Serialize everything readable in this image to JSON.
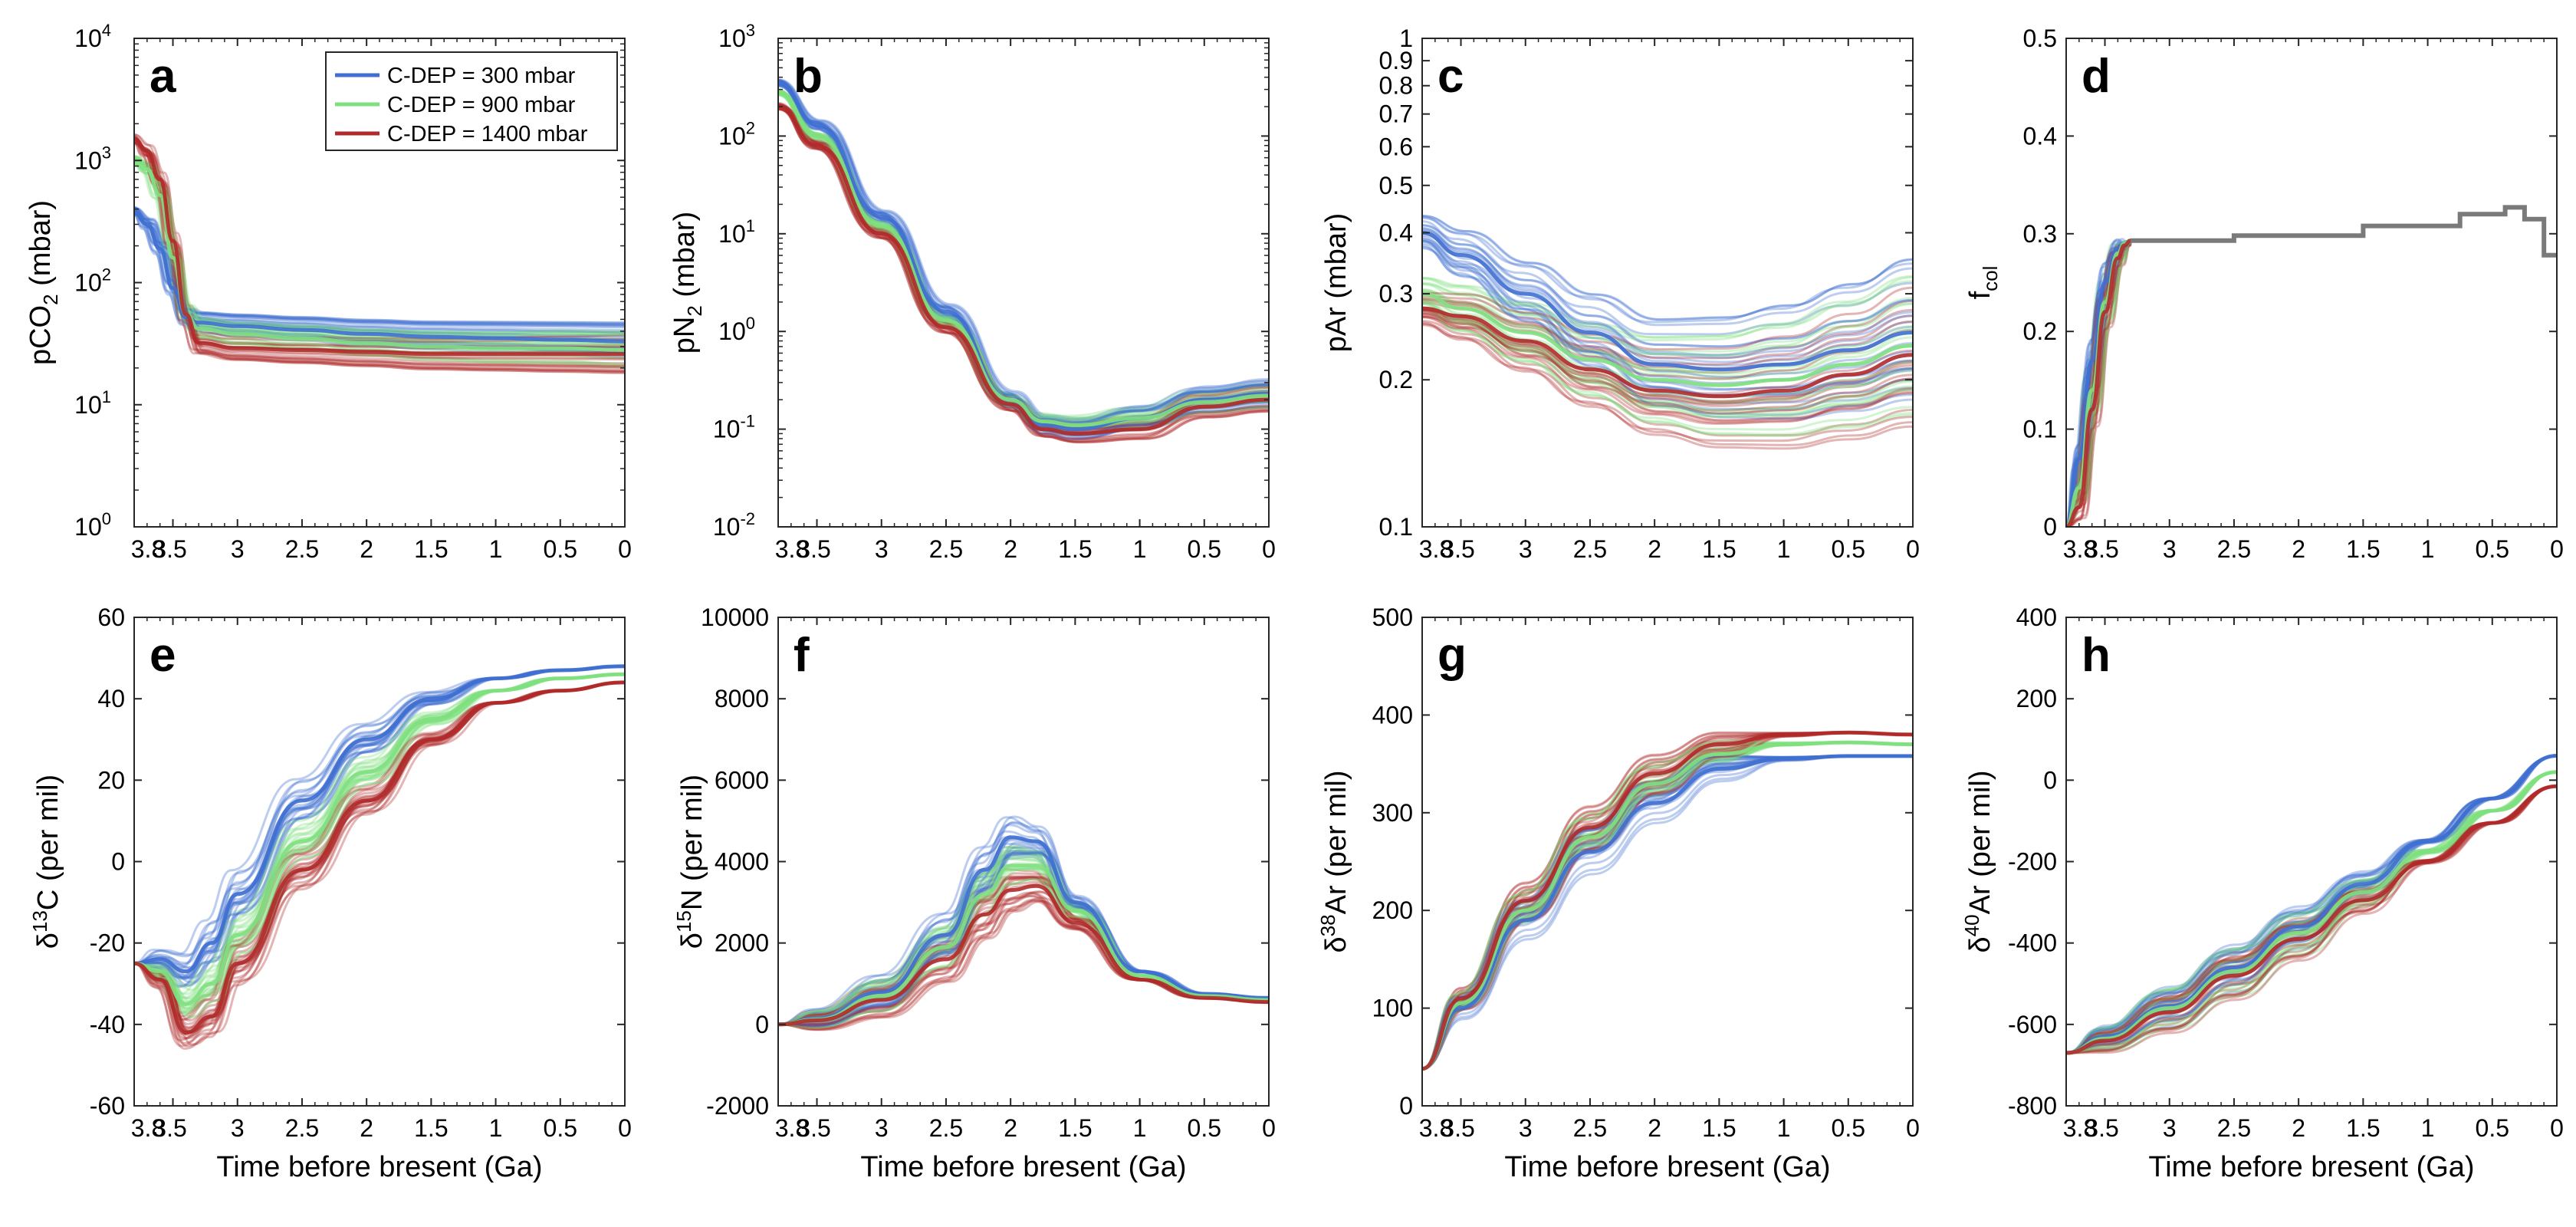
{
  "figure": {
    "xlabel": "Time before bresent (Ga)"
  },
  "legend": [
    {
      "label": "C-DEP = 300 mbar",
      "color": "#3f6fd0"
    },
    {
      "label": "C-DEP = 900 mbar",
      "color": "#7fe07f"
    },
    {
      "label": "C-DEP = 1400 mbar",
      "color": "#b02a2a"
    }
  ],
  "chart_data": [
    {
      "id": "a",
      "letter": "a",
      "type": "line",
      "scale": "log",
      "ylabel_base": "pCO",
      "ylabel_sub": "2",
      "ylabel_rest": " (mbar)",
      "ylim": [
        1,
        10000
      ],
      "yticks": [
        {
          "v": 1,
          "b": "10",
          "e": "0"
        },
        {
          "v": 10,
          "b": "10",
          "e": "1"
        },
        {
          "v": 100,
          "b": "10",
          "e": "2"
        },
        {
          "v": 1000,
          "b": "10",
          "e": "3"
        },
        {
          "v": 10000,
          "b": "10",
          "e": "4"
        }
      ],
      "x": [
        3.8,
        3.7,
        3.6,
        3.5,
        3.4,
        3.3,
        3.0,
        2.5,
        2.0,
        1.5,
        1.0,
        0.5,
        0.0
      ],
      "series": [
        {
          "name": "C-DEP = 300 mbar",
          "values": [
            380,
            300,
            190,
            90,
            52,
            47,
            44,
            41,
            38,
            36,
            35,
            34,
            33
          ]
        },
        {
          "name": "C-DEP = 900 mbar",
          "values": [
            1000,
            850,
            520,
            160,
            55,
            42,
            38,
            35,
            32,
            30,
            29,
            29,
            28
          ]
        },
        {
          "name": "C-DEP = 1400 mbar",
          "values": [
            1500,
            1200,
            700,
            220,
            55,
            32,
            29,
            28,
            27,
            26,
            26,
            26,
            26
          ]
        }
      ],
      "show_legend": true
    },
    {
      "id": "b",
      "letter": "b",
      "type": "line",
      "scale": "log",
      "ylabel_base": "pN",
      "ylabel_sub": "2",
      "ylabel_rest": " (mbar)",
      "ylim": [
        0.01,
        1000
      ],
      "yticks": [
        {
          "v": 0.01,
          "b": "10",
          "e": "-2"
        },
        {
          "v": 0.1,
          "b": "10",
          "e": "-1"
        },
        {
          "v": 1,
          "b": "10",
          "e": "0"
        },
        {
          "v": 10,
          "b": "10",
          "e": "1"
        },
        {
          "v": 100,
          "b": "10",
          "e": "2"
        },
        {
          "v": 1000,
          "b": "10",
          "e": "3"
        }
      ],
      "x": [
        3.8,
        3.5,
        3.0,
        2.5,
        2.0,
        1.75,
        1.5,
        1.0,
        0.5,
        0.0
      ],
      "series": [
        {
          "name": "C-DEP = 300 mbar",
          "values": [
            350,
            130,
            15,
            1.6,
            0.2,
            0.11,
            0.1,
            0.13,
            0.2,
            0.23
          ]
        },
        {
          "name": "C-DEP = 900 mbar",
          "values": [
            280,
            100,
            12,
            1.3,
            0.2,
            0.12,
            0.11,
            0.13,
            0.19,
            0.22
          ]
        },
        {
          "name": "C-DEP = 1400 mbar",
          "values": [
            200,
            80,
            10,
            1.1,
            0.18,
            0.1,
            0.09,
            0.1,
            0.17,
            0.2
          ]
        }
      ]
    },
    {
      "id": "c",
      "letter": "c",
      "type": "line",
      "scale": "log",
      "ylabel_base": "pAr",
      "ylabel_sub": "",
      "ylabel_rest": " (mbar)",
      "ylim": [
        0.1,
        1
      ],
      "yticks": [
        {
          "v": 0.1,
          "t": "0.1"
        },
        {
          "v": 0.2,
          "t": "0.2"
        },
        {
          "v": 0.3,
          "t": "0.3"
        },
        {
          "v": 0.4,
          "t": "0.4"
        },
        {
          "v": 0.5,
          "t": "0.5"
        },
        {
          "v": 0.6,
          "t": "0.6"
        },
        {
          "v": 0.7,
          "t": "0.7"
        },
        {
          "v": 0.8,
          "t": "0.8"
        },
        {
          "v": 0.9,
          "t": "0.9"
        },
        {
          "v": 1,
          "t": "1"
        }
      ],
      "x": [
        3.8,
        3.5,
        3.0,
        2.5,
        2.0,
        1.5,
        1.0,
        0.5,
        0.0
      ],
      "series": [
        {
          "name": "C-DEP = 300 mbar",
          "values": [
            0.4,
            0.36,
            0.3,
            0.25,
            0.215,
            0.21,
            0.215,
            0.23,
            0.25
          ]
        },
        {
          "name": "C-DEP = 900 mbar",
          "values": [
            0.3,
            0.28,
            0.25,
            0.22,
            0.2,
            0.195,
            0.2,
            0.215,
            0.235
          ]
        },
        {
          "name": "C-DEP = 1400 mbar",
          "values": [
            0.28,
            0.27,
            0.24,
            0.21,
            0.19,
            0.185,
            0.19,
            0.205,
            0.225
          ]
        }
      ]
    },
    {
      "id": "d",
      "letter": "d",
      "type": "line",
      "scale": "linear",
      "ylabel_base": "f",
      "ylabel_sub": "col",
      "ylabel_rest": "",
      "ylim": [
        0,
        0.5
      ],
      "yticks": [
        {
          "v": 0,
          "t": "0"
        },
        {
          "v": 0.1,
          "t": "0.1"
        },
        {
          "v": 0.2,
          "t": "0.2"
        },
        {
          "v": 0.3,
          "t": "0.3"
        },
        {
          "v": 0.4,
          "t": "0.4"
        },
        {
          "v": 0.5,
          "t": "0.5"
        }
      ],
      "x": [
        3.8,
        3.7,
        3.6,
        3.5,
        3.4,
        3.35,
        3.3
      ],
      "series": [
        {
          "name": "C-DEP = 300 mbar",
          "values": [
            0.0,
            0.07,
            0.17,
            0.25,
            0.285,
            0.29,
            0.293
          ]
        },
        {
          "name": "C-DEP = 900 mbar",
          "values": [
            0.0,
            0.04,
            0.14,
            0.23,
            0.28,
            0.29,
            0.293
          ]
        },
        {
          "name": "C-DEP = 1400 mbar",
          "values": [
            0.0,
            0.02,
            0.12,
            0.22,
            0.275,
            0.288,
            0.293
          ]
        }
      ],
      "step": {
        "name": "f_col",
        "x": [
          3.3,
          2.5,
          2.5,
          1.5,
          1.5,
          0.75,
          0.75,
          0.4,
          0.4,
          0.25,
          0.25,
          0.1,
          0.1,
          0.0
        ],
        "values": [
          0.293,
          0.293,
          0.298,
          0.298,
          0.308,
          0.308,
          0.32,
          0.32,
          0.327,
          0.327,
          0.315,
          0.315,
          0.278,
          0.278
        ]
      }
    },
    {
      "id": "e",
      "letter": "e",
      "type": "line",
      "scale": "linear",
      "ylabel_base": "δ",
      "ylabel_sup": "13",
      "ylabel_rest": "C (per mil)",
      "ylim": [
        -60,
        60
      ],
      "yticks": [
        {
          "v": -60,
          "t": "-60"
        },
        {
          "v": -40,
          "t": "-40"
        },
        {
          "v": -20,
          "t": "-20"
        },
        {
          "v": 0,
          "t": "0"
        },
        {
          "v": 20,
          "t": "20"
        },
        {
          "v": 40,
          "t": "40"
        },
        {
          "v": 60,
          "t": "60"
        }
      ],
      "x": [
        3.8,
        3.6,
        3.4,
        3.2,
        3.0,
        2.5,
        2.0,
        1.5,
        1.0,
        0.5,
        0.0
      ],
      "series": [
        {
          "name": "C-DEP = 300 mbar",
          "values": [
            -25,
            -24,
            -27,
            -20,
            -8,
            15,
            30,
            40,
            45,
            47,
            48
          ]
        },
        {
          "name": "C-DEP = 900 mbar",
          "values": [
            -25,
            -27,
            -35,
            -30,
            -18,
            5,
            22,
            35,
            42,
            45,
            46
          ]
        },
        {
          "name": "C-DEP = 1400 mbar",
          "values": [
            -25,
            -29,
            -42,
            -38,
            -25,
            -2,
            15,
            30,
            39,
            42,
            44
          ]
        }
      ]
    },
    {
      "id": "f",
      "letter": "f",
      "type": "line",
      "scale": "linear",
      "ylabel_base": "δ",
      "ylabel_sup": "15",
      "ylabel_rest": "N (per mil)",
      "ylim": [
        -2000,
        10000
      ],
      "yticks": [
        {
          "v": -2000,
          "t": "-2000"
        },
        {
          "v": 0,
          "t": "0"
        },
        {
          "v": 2000,
          "t": "2000"
        },
        {
          "v": 4000,
          "t": "4000"
        },
        {
          "v": 6000,
          "t": "6000"
        },
        {
          "v": 8000,
          "t": "8000"
        },
        {
          "v": 10000,
          "t": "10000"
        }
      ],
      "x": [
        3.8,
        3.5,
        3.0,
        2.5,
        2.2,
        2.0,
        1.8,
        1.5,
        1.0,
        0.5,
        0.0
      ],
      "series": [
        {
          "name": "C-DEP = 300 mbar",
          "values": [
            0,
            150,
            800,
            2200,
            3800,
            4600,
            4500,
            3000,
            1300,
            750,
            650
          ]
        },
        {
          "name": "C-DEP = 900 mbar",
          "values": [
            0,
            120,
            700,
            1900,
            3200,
            3900,
            3900,
            2800,
            1200,
            700,
            600
          ]
        },
        {
          "name": "C-DEP = 1400 mbar",
          "values": [
            0,
            100,
            600,
            1600,
            2700,
            3300,
            3400,
            2500,
            1100,
            650,
            550
          ]
        }
      ]
    },
    {
      "id": "g",
      "letter": "g",
      "type": "line",
      "scale": "linear",
      "ylabel_base": "δ",
      "ylabel_sup": "38",
      "ylabel_rest": "Ar (per mil)",
      "ylim": [
        0,
        500
      ],
      "yticks": [
        {
          "v": 0,
          "t": "0"
        },
        {
          "v": 100,
          "t": "100"
        },
        {
          "v": 200,
          "t": "200"
        },
        {
          "v": 300,
          "t": "300"
        },
        {
          "v": 400,
          "t": "400"
        },
        {
          "v": 500,
          "t": "500"
        }
      ],
      "x": [
        3.8,
        3.5,
        3.0,
        2.5,
        2.0,
        1.5,
        1.0,
        0.5,
        0.0
      ],
      "series": [
        {
          "name": "C-DEP = 300 mbar",
          "values": [
            38,
            100,
            190,
            260,
            310,
            345,
            355,
            358,
            358
          ]
        },
        {
          "name": "C-DEP = 900 mbar",
          "values": [
            38,
            105,
            200,
            275,
            330,
            360,
            370,
            372,
            370
          ]
        },
        {
          "name": "C-DEP = 1400 mbar",
          "values": [
            38,
            110,
            210,
            285,
            340,
            370,
            380,
            382,
            380
          ]
        }
      ]
    },
    {
      "id": "h",
      "letter": "h",
      "type": "line",
      "scale": "linear",
      "ylabel_base": "δ",
      "ylabel_sup": "40",
      "ylabel_rest": "Ar (per mil)",
      "ylim": [
        -800,
        400
      ],
      "yticks": [
        {
          "v": -800,
          "t": "-800"
        },
        {
          "v": -600,
          "t": "-600"
        },
        {
          "v": -400,
          "t": "-400"
        },
        {
          "v": -200,
          "t": "-200"
        },
        {
          "v": 0,
          "t": "0"
        },
        {
          "v": 200,
          "t": "200"
        },
        {
          "v": 400,
          "t": "400"
        }
      ],
      "x": [
        3.8,
        3.5,
        3.0,
        2.5,
        2.0,
        1.5,
        1.0,
        0.5,
        0.0
      ],
      "series": [
        {
          "name": "C-DEP = 300 mbar",
          "values": [
            -670,
            -630,
            -555,
            -460,
            -360,
            -255,
            -150,
            -45,
            60
          ]
        },
        {
          "name": "C-DEP = 900 mbar",
          "values": [
            -670,
            -635,
            -560,
            -470,
            -375,
            -275,
            -175,
            -75,
            20
          ]
        },
        {
          "name": "C-DEP = 1400 mbar",
          "values": [
            -670,
            -640,
            -570,
            -480,
            -390,
            -295,
            -200,
            -105,
            -15
          ]
        }
      ]
    }
  ],
  "xaxis": {
    "xlim": [
      3.8,
      0
    ],
    "ticks": [
      {
        "v": 3.8,
        "t": "3.8"
      },
      {
        "v": 3.5,
        "t": "3.5"
      },
      {
        "v": 3.0,
        "t": "3"
      },
      {
        "v": 2.5,
        "t": "2.5"
      },
      {
        "v": 2.0,
        "t": "2"
      },
      {
        "v": 1.5,
        "t": "1.5"
      },
      {
        "v": 1.0,
        "t": "1"
      },
      {
        "v": 0.5,
        "t": "0.5"
      },
      {
        "v": 0.0,
        "t": "0"
      }
    ]
  }
}
